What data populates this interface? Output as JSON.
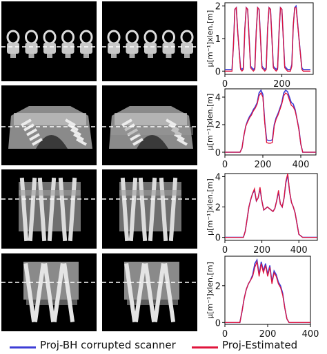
{
  "colors": {
    "bh": "#3d3dd6",
    "est": "#e0143c",
    "dash": "#ffffff"
  },
  "legend": {
    "bh_label": "Proj-BH corrupted scanner",
    "est_label": "Proj-Estimated"
  },
  "chart_data": [
    {
      "type": "line",
      "ylabel": "μ[m⁻¹]xlen.[m]",
      "xlim": [
        0,
        310
      ],
      "ylim": [
        -0.1,
        2.1
      ],
      "xticks": [
        0,
        200
      ],
      "yticks": [
        0,
        1,
        2
      ],
      "series": [
        {
          "name": "Proj-BH corrupted scanner",
          "x": [
            0,
            15,
            25,
            30,
            35,
            40,
            45,
            55,
            60,
            65,
            70,
            75,
            80,
            90,
            100,
            105,
            110,
            115,
            120,
            130,
            140,
            145,
            150,
            155,
            160,
            170,
            180,
            185,
            190,
            195,
            200,
            210,
            220,
            230,
            235,
            240,
            245,
            250,
            260,
            270,
            275,
            280,
            285,
            290,
            300
          ],
          "y": [
            0.05,
            0.05,
            0.05,
            0.8,
            1.9,
            1.95,
            1.2,
            0.1,
            0.05,
            0.1,
            1.3,
            1.95,
            1.9,
            0.15,
            0.05,
            0.1,
            1.2,
            1.95,
            1.9,
            0.15,
            0.05,
            0.1,
            1.3,
            1.95,
            1.9,
            0.15,
            0.05,
            0.1,
            1.2,
            1.95,
            1.9,
            0.15,
            0.05,
            0.05,
            0.2,
            1.4,
            1.95,
            2.0,
            1.0,
            0.1,
            0.05,
            0.05,
            0.05,
            0.05,
            0.05
          ]
        },
        {
          "name": "Proj-Estimated",
          "x": [
            0,
            15,
            25,
            30,
            35,
            40,
            45,
            55,
            60,
            65,
            70,
            75,
            80,
            90,
            100,
            105,
            110,
            115,
            120,
            130,
            140,
            145,
            150,
            155,
            160,
            170,
            180,
            185,
            190,
            195,
            200,
            210,
            220,
            230,
            235,
            240,
            245,
            250,
            260,
            270,
            275,
            280,
            285,
            290,
            300
          ],
          "y": [
            0.0,
            0.0,
            0.0,
            0.8,
            1.9,
            1.95,
            1.2,
            0.05,
            0.0,
            0.05,
            1.3,
            1.95,
            1.9,
            0.1,
            0.0,
            0.05,
            1.2,
            1.95,
            1.9,
            0.1,
            0.0,
            0.05,
            1.3,
            1.95,
            1.9,
            0.1,
            0.0,
            0.05,
            1.2,
            1.95,
            1.9,
            0.1,
            0.0,
            0.0,
            0.15,
            1.4,
            1.95,
            1.95,
            1.0,
            0.05,
            0.0,
            0.0,
            0.0,
            0.0,
            0.0
          ]
        }
      ]
    },
    {
      "type": "line",
      "ylabel": "μ[m⁻¹]xlen.[m]",
      "xlim": [
        0,
        480
      ],
      "ylim": [
        -0.2,
        4.6
      ],
      "xticks": [
        0,
        200,
        400
      ],
      "yticks": [
        0,
        2,
        4
      ],
      "series": [
        {
          "name": "Proj-BH corrupted scanner",
          "x": [
            0,
            30,
            60,
            80,
            90,
            100,
            110,
            120,
            130,
            140,
            150,
            160,
            170,
            180,
            190,
            200,
            210,
            220,
            230,
            240,
            250,
            260,
            270,
            280,
            290,
            300,
            310,
            320,
            330,
            340,
            350,
            360,
            370,
            380,
            390,
            400,
            410,
            420,
            440,
            460,
            480
          ],
          "y": [
            0,
            0,
            0,
            0,
            0.3,
            1.2,
            1.9,
            2.3,
            2.6,
            2.8,
            3.1,
            3.3,
            3.6,
            4.3,
            4.5,
            4.2,
            2.2,
            0.9,
            0.85,
            0.85,
            0.9,
            2.0,
            2.5,
            2.8,
            3.2,
            3.6,
            4.3,
            4.5,
            4.4,
            4.0,
            3.6,
            3.5,
            3.1,
            2.4,
            1.7,
            0.6,
            0,
            0,
            0,
            0,
            0
          ]
        },
        {
          "name": "Proj-Estimated",
          "x": [
            0,
            30,
            60,
            80,
            90,
            100,
            110,
            120,
            130,
            140,
            150,
            160,
            170,
            180,
            190,
            200,
            210,
            220,
            230,
            240,
            250,
            260,
            270,
            280,
            290,
            300,
            310,
            320,
            330,
            340,
            350,
            360,
            370,
            380,
            390,
            400,
            410,
            420,
            440,
            460,
            480
          ],
          "y": [
            0,
            0,
            0,
            0,
            0.3,
            1.2,
            1.9,
            2.2,
            2.5,
            2.7,
            3.0,
            3.2,
            3.5,
            4.1,
            4.3,
            4.0,
            2.1,
            0.7,
            0.65,
            0.65,
            0.7,
            1.9,
            2.4,
            2.7,
            3.1,
            3.5,
            4.1,
            4.3,
            4.2,
            3.8,
            3.4,
            3.3,
            3.0,
            2.4,
            1.6,
            0.6,
            0,
            0,
            0,
            0,
            0
          ]
        }
      ]
    },
    {
      "type": "line",
      "ylabel": "μ[m⁻¹]xlen.[m]",
      "xlim": [
        0,
        500
      ],
      "ylim": [
        -0.2,
        4.2
      ],
      "xticks": [
        0,
        200,
        400
      ],
      "yticks": [
        0,
        2,
        4
      ],
      "series": [
        {
          "name": "Proj-BH corrupted scanner",
          "x": [
            0,
            60,
            100,
            110,
            120,
            130,
            140,
            150,
            160,
            170,
            180,
            190,
            200,
            210,
            220,
            230,
            240,
            250,
            260,
            270,
            280,
            290,
            300,
            310,
            320,
            330,
            340,
            350,
            360,
            370,
            380,
            390,
            400,
            420,
            460,
            500
          ],
          "y": [
            0,
            0,
            0,
            0.4,
            1.2,
            2.0,
            2.5,
            2.9,
            3.1,
            2.4,
            2.6,
            3.2,
            2.4,
            1.8,
            1.9,
            2.0,
            1.9,
            1.8,
            1.7,
            1.9,
            2.4,
            3.0,
            2.2,
            2.0,
            2.6,
            3.6,
            4.1,
            3.0,
            2.3,
            2.0,
            1.6,
            0.9,
            0.2,
            0,
            0,
            0
          ]
        },
        {
          "name": "Proj-Estimated",
          "x": [
            0,
            60,
            100,
            110,
            120,
            130,
            140,
            150,
            160,
            170,
            180,
            190,
            200,
            210,
            220,
            230,
            240,
            250,
            260,
            270,
            280,
            290,
            300,
            310,
            320,
            330,
            340,
            350,
            360,
            370,
            380,
            390,
            400,
            420,
            460,
            500
          ],
          "y": [
            0,
            0,
            0,
            0.4,
            1.2,
            2.0,
            2.5,
            2.9,
            3.2,
            2.4,
            2.6,
            3.3,
            2.4,
            1.8,
            1.9,
            2.0,
            1.9,
            1.8,
            1.7,
            1.9,
            2.4,
            3.1,
            2.2,
            2.0,
            2.6,
            3.7,
            4.2,
            3.0,
            2.3,
            2.0,
            1.6,
            0.9,
            0.2,
            0,
            0,
            0
          ]
        }
      ]
    },
    {
      "type": "line",
      "ylabel": "μ[m⁻¹]xlen.[m]",
      "xlim": [
        0,
        400
      ],
      "ylim": [
        -0.1,
        3.6
      ],
      "xticks": [
        0,
        200,
        400
      ],
      "xticklabels": [
        "0",
        "200",
        "400"
      ],
      "yticks": [
        0,
        2
      ],
      "series": [
        {
          "name": "Proj-BH corrupted scanner",
          "x": [
            0,
            40,
            70,
            80,
            90,
            100,
            110,
            120,
            130,
            140,
            150,
            160,
            170,
            180,
            190,
            200,
            210,
            220,
            230,
            240,
            250,
            260,
            270,
            280,
            290,
            300,
            320,
            360,
            400
          ],
          "y": [
            0,
            0,
            0,
            0.6,
            1.3,
            1.8,
            2.1,
            2.3,
            2.6,
            3.2,
            3.4,
            2.6,
            3.3,
            2.8,
            3.2,
            2.6,
            3.1,
            2.2,
            2.8,
            2.6,
            2.2,
            2.0,
            1.6,
            0.8,
            0.2,
            0,
            0,
            0,
            0
          ]
        },
        {
          "name": "Proj-Estimated",
          "x": [
            0,
            40,
            70,
            80,
            90,
            100,
            110,
            120,
            130,
            140,
            150,
            160,
            170,
            180,
            190,
            200,
            210,
            220,
            230,
            240,
            250,
            260,
            270,
            280,
            290,
            300,
            320,
            360,
            400
          ],
          "y": [
            0,
            0,
            0,
            0.6,
            1.3,
            1.8,
            2.1,
            2.3,
            2.5,
            3.0,
            3.3,
            2.5,
            3.2,
            2.7,
            3.1,
            2.5,
            3.0,
            2.1,
            2.7,
            2.5,
            2.1,
            1.9,
            1.5,
            0.8,
            0.2,
            0,
            0,
            0,
            0
          ]
        }
      ]
    }
  ]
}
